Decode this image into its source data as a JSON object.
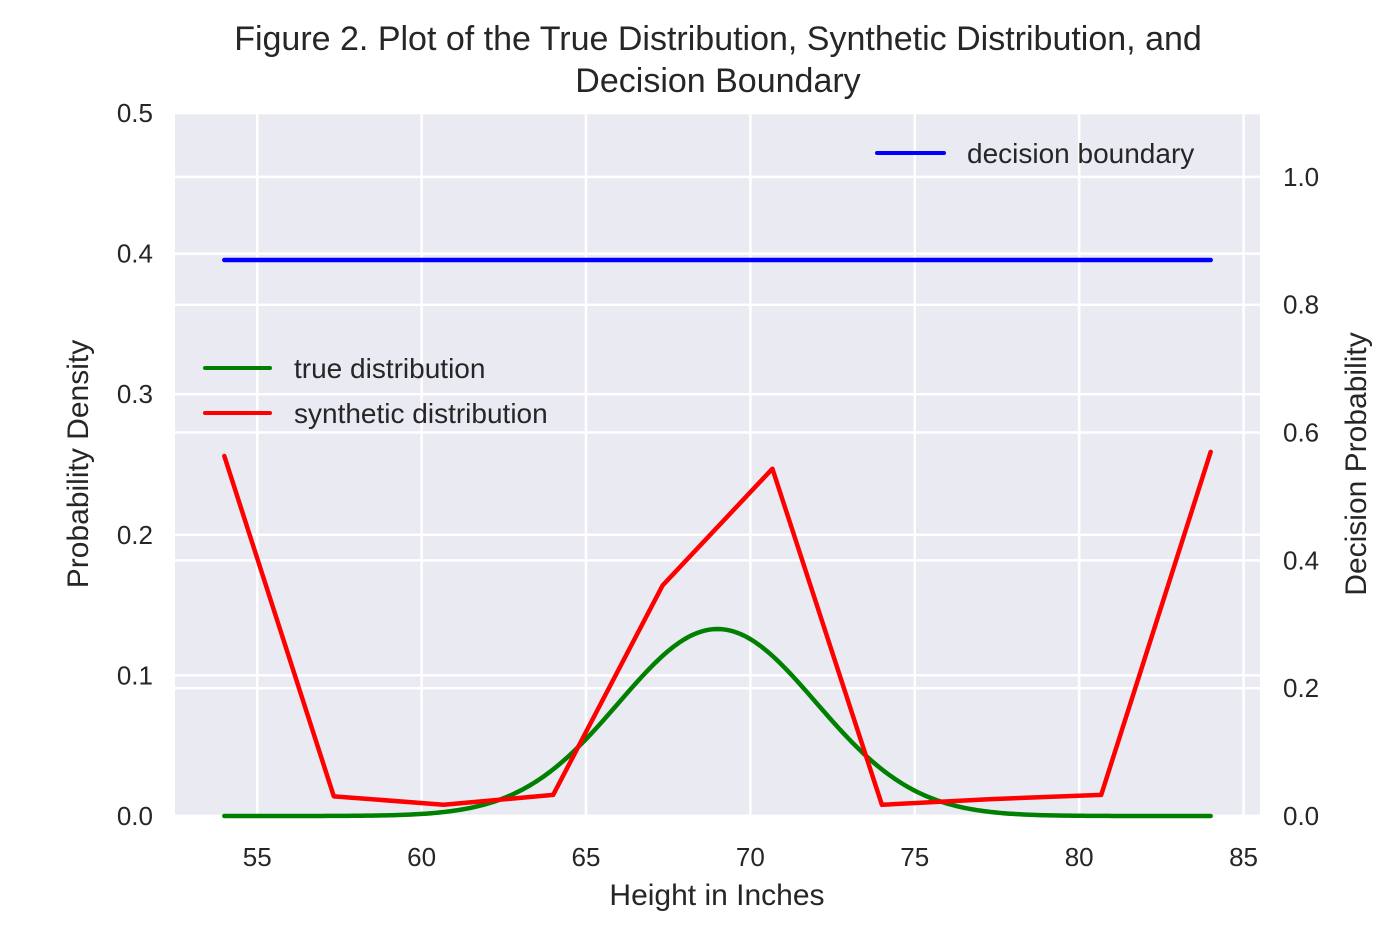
{
  "chart_data": {
    "type": "line",
    "title_line1": "Figure 2. Plot of the True Distribution, Synthetic Distribution, and",
    "title_line2": "Decision Boundary",
    "xlabel": "Height in Inches",
    "ylabel": "Probability Density",
    "y2label": "Decision Probability",
    "xlim": [
      52.5,
      85.5
    ],
    "ylim": [
      0,
      0.5
    ],
    "y2lim": [
      0,
      1.1
    ],
    "xticks": [
      55,
      60,
      65,
      70,
      75,
      80,
      85
    ],
    "yticks": [
      0.0,
      0.1,
      0.2,
      0.3,
      0.4,
      0.5
    ],
    "y2ticks": [
      0.0,
      0.2,
      0.4,
      0.6,
      0.8,
      1.0
    ],
    "grid": true,
    "background": "#eaeaf2",
    "series": [
      {
        "name": "true distribution",
        "axis": "left",
        "color": "#008000",
        "distribution": {
          "kind": "normal",
          "mean": 69,
          "std": 3,
          "from": 54,
          "to": 84
        }
      },
      {
        "name": "synthetic distribution",
        "axis": "left",
        "color": "#ff0000",
        "x": [
          54.0,
          57.33,
          60.67,
          64.0,
          67.33,
          70.67,
          74.0,
          77.33,
          80.67,
          84.0
        ],
        "values": [
          0.256,
          0.014,
          0.008,
          0.015,
          0.164,
          0.247,
          0.008,
          0.012,
          0.015,
          0.259
        ]
      },
      {
        "name": "decision boundary",
        "axis": "right",
        "color": "#0000ff",
        "x": [
          54,
          84
        ],
        "values": [
          0.87,
          0.87
        ]
      }
    ],
    "legends": [
      {
        "placement": "upper-right",
        "entries": [
          "decision boundary"
        ]
      },
      {
        "placement": "center-left",
        "entries": [
          "true distribution",
          "synthetic distribution"
        ]
      }
    ]
  }
}
